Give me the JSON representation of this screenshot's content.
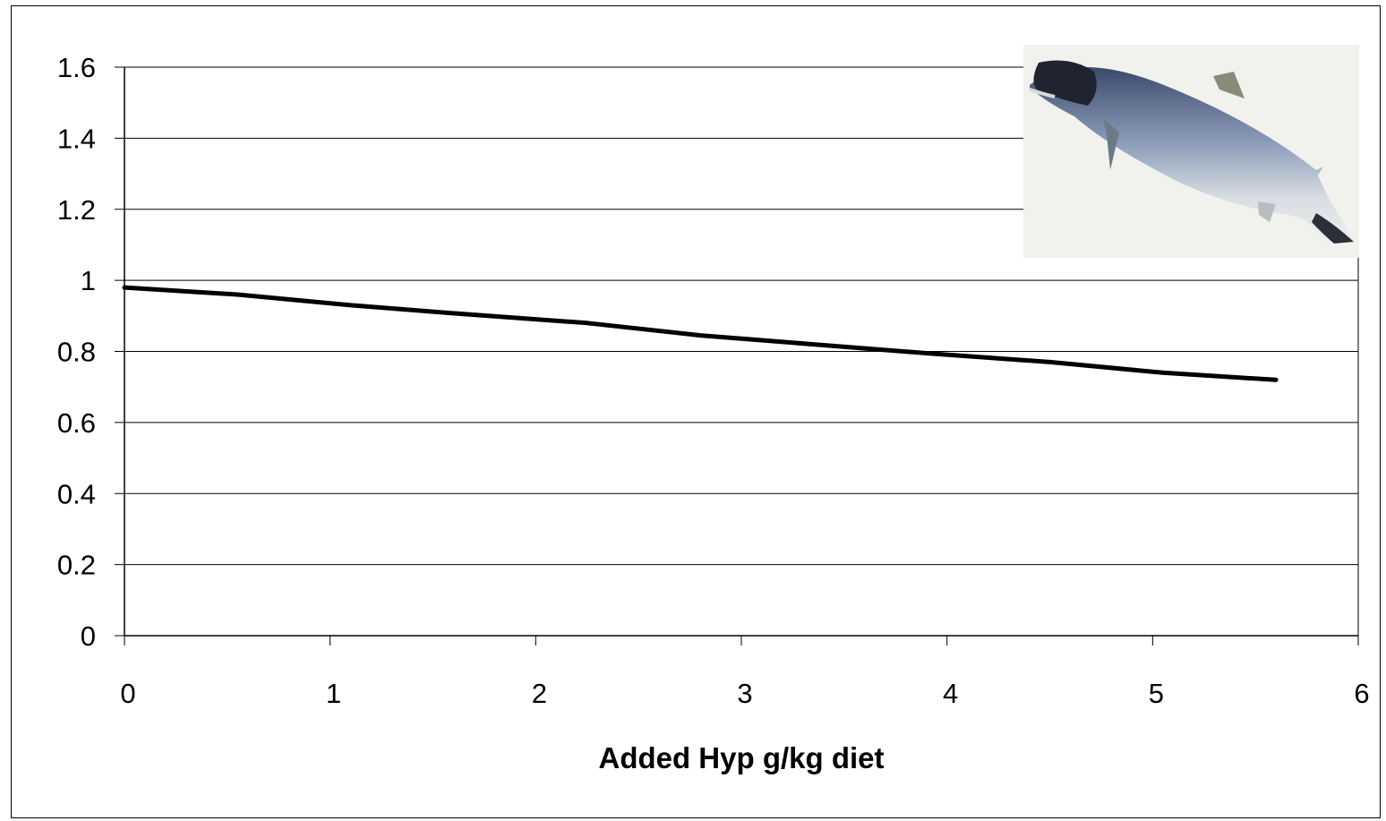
{
  "chart_data": {
    "type": "line",
    "title": "",
    "xlabel": "Added Hyp  g/kg diet",
    "ylabel": "",
    "xlim": [
      0,
      6
    ],
    "ylim": [
      0,
      1.6
    ],
    "x_ticks": [
      "0",
      "1",
      "2",
      "3",
      "4",
      "5",
      "6"
    ],
    "y_ticks": [
      "0",
      "0.2",
      "0.4",
      "0.6",
      "0.8",
      "1",
      "1.2",
      "1.4",
      "1.6"
    ],
    "grid": "horizontal",
    "series": [
      {
        "color": "#000000",
        "x": [
          0,
          0.55,
          1.1,
          1.65,
          2.25,
          2.8,
          3.35,
          3.9,
          4.5,
          5.05,
          5.6
        ],
        "y": [
          0.98,
          0.96,
          0.93,
          0.905,
          0.88,
          0.845,
          0.82,
          0.795,
          0.77,
          0.74,
          0.72
        ]
      }
    ],
    "inset_image": "salmon-fish-photo"
  }
}
